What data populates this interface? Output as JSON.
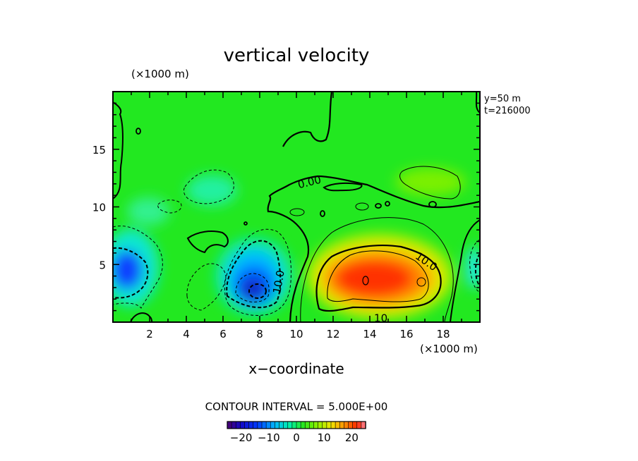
{
  "chart_data": {
    "type": "heatmap",
    "title": "vertical velocity",
    "xlabel": "x−coordinate",
    "x_unit_label": "(×1000 m)",
    "y_unit_label": "(×1000 m)",
    "info_lines": [
      "y=50  m",
      "t=216000"
    ],
    "xlim": [
      0,
      20
    ],
    "ylim": [
      0,
      20
    ],
    "xticks": [
      2,
      4,
      6,
      8,
      10,
      12,
      14,
      16,
      18
    ],
    "yticks": [
      5,
      10,
      15
    ],
    "contour_interval_text": "CONTOUR INTERVAL = 5.000E+00",
    "contour_labels": [
      {
        "text": "0.00",
        "x": 10.7,
        "y": 12.2,
        "angle": -14
      },
      {
        "text": "10.0",
        "x": 17.1,
        "y": 5.3,
        "angle": 35
      },
      {
        "text": "10.0",
        "x": 9.0,
        "y": 3.5,
        "angle": -80
      },
      {
        "text": "10",
        "x": 14.6,
        "y": 0.4,
        "angle": 0
      }
    ],
    "colorbar": {
      "min": -25,
      "max": 25,
      "tick_values": [
        -20,
        -10,
        0,
        10,
        20
      ],
      "tick_labels": [
        "−20",
        "−10",
        "0",
        "10",
        "20"
      ]
    },
    "features": [
      {
        "name": "updraft core",
        "x": 14.0,
        "y": 3.5,
        "peak": 22
      },
      {
        "name": "downdraft core",
        "x": 7.6,
        "y": 2.8,
        "peak": -22
      },
      {
        "name": "downdraft west edge",
        "x": 0.5,
        "y": 4.2,
        "peak": -19
      },
      {
        "name": "updraft northeast",
        "x": 17.0,
        "y": 12.0,
        "peak": 6
      }
    ]
  },
  "colors": {
    "plot_background": "#1fe81f",
    "contour_line": "#000000"
  }
}
